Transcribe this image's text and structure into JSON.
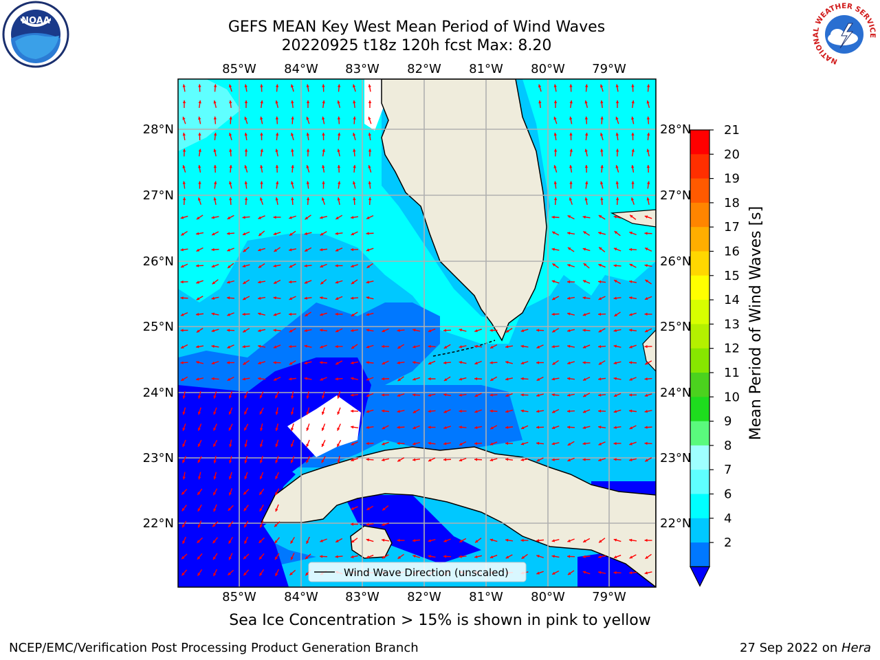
{
  "title": {
    "line1": "GEFS MEAN Key West Mean Period of Wind Waves",
    "line2": "20220925 t18z 120h fcst   Max: 8.20"
  },
  "map": {
    "lon_ticks": [
      "85°W",
      "84°W",
      "83°W",
      "82°W",
      "81°W",
      "80°W",
      "79°W"
    ],
    "lat_ticks": [
      "28°N",
      "27°N",
      "26°N",
      "25°N",
      "24°N",
      "23°N",
      "22°N"
    ],
    "legend_label": "Wind Wave Direction (unscaled)",
    "arrow_color": "#ff0000",
    "land_color": "#efecdc",
    "grid_color": "#b0b0b0"
  },
  "colorbar": {
    "label": "Mean Period of Wind Waves [s]",
    "ticks": [
      "21",
      "20",
      "19",
      "18",
      "17",
      "16",
      "15",
      "14",
      "13",
      "12",
      "11",
      "10",
      "9",
      "8",
      "7",
      "6",
      "4",
      "2"
    ],
    "colors_top_to_bottom": [
      "#ff0000",
      "#ff2f00",
      "#ff5a00",
      "#ff8500",
      "#ffae00",
      "#ffd700",
      "#ffff00",
      "#d7ff00",
      "#b4f000",
      "#87e600",
      "#4bd21e",
      "#1edc1e",
      "#5afa7d",
      "#9fffff",
      "#5fffff",
      "#00ffff",
      "#00c8ff",
      "#0078ff"
    ],
    "under_color": "#0000ff"
  },
  "footer": {
    "caption": "Sea Ice Concentration > 15% is shown in pink to yellow",
    "credit": "NCEP/EMC/Verification Post Processing Product Generation Branch",
    "date": "27 Sep 2022 on ",
    "host": "Hera"
  },
  "logos": {
    "left": "NOAA",
    "right_ring": "NATIONAL WEATHER SERVICE"
  }
}
